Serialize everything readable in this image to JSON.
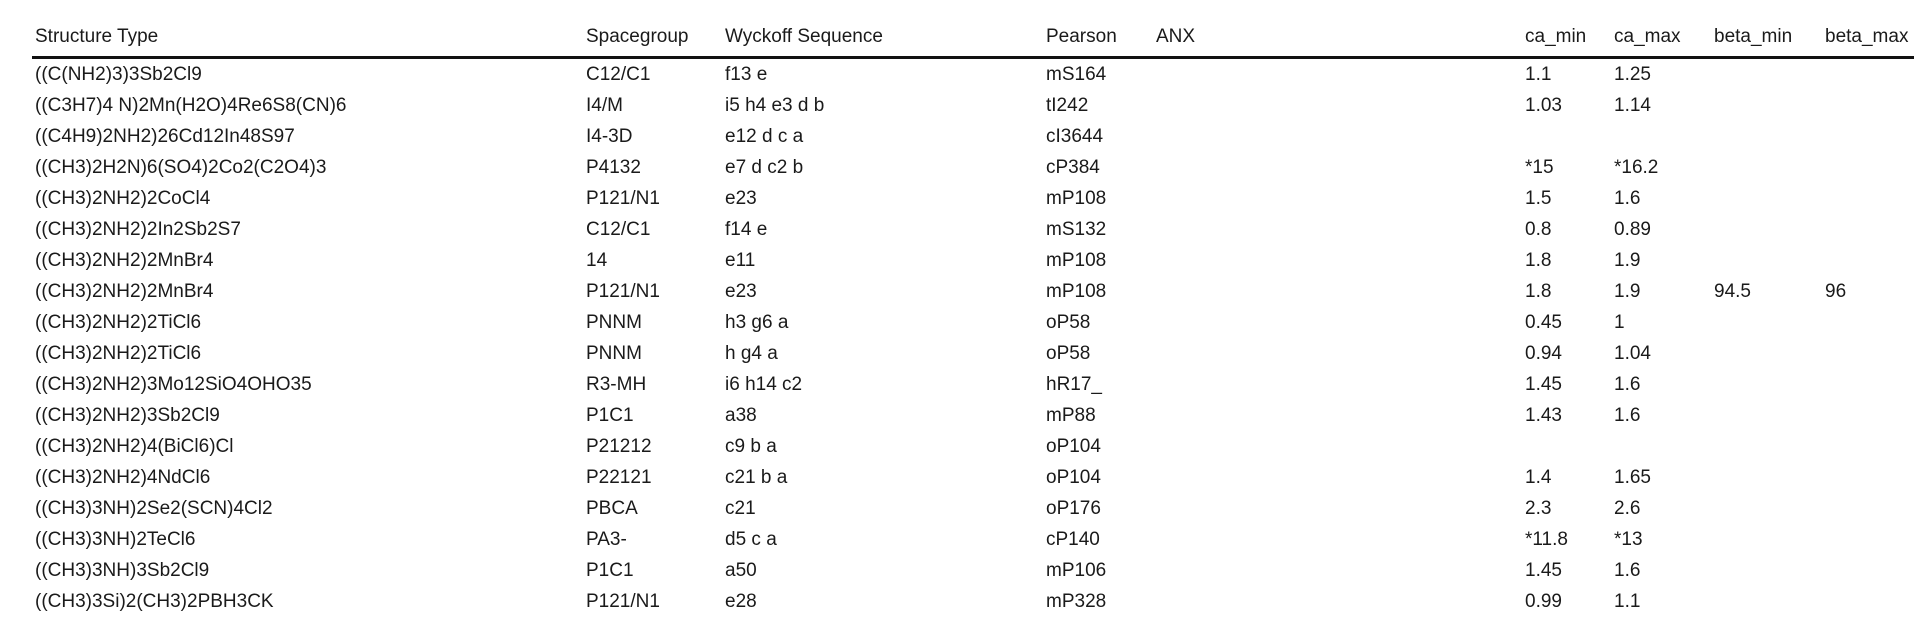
{
  "table": {
    "headers": {
      "structure_type": "Structure Type",
      "spacegroup": "Spacegroup",
      "wyckoff_sequence": "Wyckoff Sequence",
      "pearson": "Pearson",
      "anx": "ANX",
      "ca_min": "ca_min",
      "ca_max": "ca_max",
      "beta_min": "beta_min",
      "beta_max": "beta_max"
    },
    "rows": [
      {
        "structure_type": "((C(NH2)3)3Sb2Cl9",
        "spacegroup": "C12/C1",
        "wyckoff_sequence": "f13 e",
        "pearson": "mS164",
        "anx": "",
        "ca_min": "1.1",
        "ca_max": "1.25",
        "beta_min": "",
        "beta_max": ""
      },
      {
        "structure_type": "((C3H7)4 N)2Mn(H2O)4Re6S8(CN)6",
        "spacegroup": "I4/M",
        "wyckoff_sequence": "i5 h4 e3 d b",
        "pearson": "tI242",
        "anx": "",
        "ca_min": "1.03",
        "ca_max": "1.14",
        "beta_min": "",
        "beta_max": ""
      },
      {
        "structure_type": "((C4H9)2NH2)26Cd12In48S97",
        "spacegroup": "I4-3D",
        "wyckoff_sequence": "e12 d c a",
        "pearson": "cI3644",
        "anx": "",
        "ca_min": "",
        "ca_max": "",
        "beta_min": "",
        "beta_max": ""
      },
      {
        "structure_type": "((CH3)2H2N)6(SO4)2Co2(C2O4)3",
        "spacegroup": "P4132",
        "wyckoff_sequence": "e7 d c2 b",
        "pearson": "cP384",
        "anx": "",
        "ca_min": "*15",
        "ca_max": "*16.2",
        "beta_min": "",
        "beta_max": ""
      },
      {
        "structure_type": "((CH3)2NH2)2CoCl4",
        "spacegroup": "P121/N1",
        "wyckoff_sequence": "e23",
        "pearson": "mP108",
        "anx": "",
        "ca_min": "1.5",
        "ca_max": "1.6",
        "beta_min": "",
        "beta_max": ""
      },
      {
        "structure_type": "((CH3)2NH2)2In2Sb2S7",
        "spacegroup": "C12/C1",
        "wyckoff_sequence": "f14 e",
        "pearson": "mS132",
        "anx": "",
        "ca_min": "0.8",
        "ca_max": "0.89",
        "beta_min": "",
        "beta_max": ""
      },
      {
        "structure_type": "((CH3)2NH2)2MnBr4",
        "spacegroup": "14",
        "wyckoff_sequence": "e11",
        "pearson": "mP108",
        "anx": "",
        "ca_min": "1.8",
        "ca_max": "1.9",
        "beta_min": "",
        "beta_max": ""
      },
      {
        "structure_type": "((CH3)2NH2)2MnBr4",
        "spacegroup": "P121/N1",
        "wyckoff_sequence": "e23",
        "pearson": "mP108",
        "anx": "",
        "ca_min": "1.8",
        "ca_max": "1.9",
        "beta_min": "94.5",
        "beta_max": "96"
      },
      {
        "structure_type": "((CH3)2NH2)2TiCl6",
        "spacegroup": "PNNM",
        "wyckoff_sequence": "h3 g6 a",
        "pearson": "oP58",
        "anx": "",
        "ca_min": "0.45",
        "ca_max": "1",
        "beta_min": "",
        "beta_max": ""
      },
      {
        "structure_type": "((CH3)2NH2)2TiCl6",
        "spacegroup": "PNNM",
        "wyckoff_sequence": "h g4 a",
        "pearson": "oP58",
        "anx": "",
        "ca_min": "0.94",
        "ca_max": "1.04",
        "beta_min": "",
        "beta_max": ""
      },
      {
        "structure_type": "((CH3)2NH2)3Mo12SiO4OHO35",
        "spacegroup": "R3-MH",
        "wyckoff_sequence": "i6 h14 c2",
        "pearson": "hR17_",
        "anx": "",
        "ca_min": "1.45",
        "ca_max": "1.6",
        "beta_min": "",
        "beta_max": ""
      },
      {
        "structure_type": "((CH3)2NH2)3Sb2Cl9",
        "spacegroup": "P1C1",
        "wyckoff_sequence": "a38",
        "pearson": "mP88",
        "anx": "",
        "ca_min": "1.43",
        "ca_max": "1.6",
        "beta_min": "",
        "beta_max": ""
      },
      {
        "structure_type": "((CH3)2NH2)4(BiCl6)Cl",
        "spacegroup": "P21212",
        "wyckoff_sequence": "c9 b a",
        "pearson": "oP104",
        "anx": "",
        "ca_min": "",
        "ca_max": "",
        "beta_min": "",
        "beta_max": ""
      },
      {
        "structure_type": "((CH3)2NH2)4NdCl6",
        "spacegroup": "P22121",
        "wyckoff_sequence": "c21 b a",
        "pearson": "oP104",
        "anx": "",
        "ca_min": "1.4",
        "ca_max": "1.65",
        "beta_min": "",
        "beta_max": ""
      },
      {
        "structure_type": "((CH3)3NH)2Se2(SCN)4Cl2",
        "spacegroup": "PBCA",
        "wyckoff_sequence": "c21",
        "pearson": "oP176",
        "anx": "",
        "ca_min": "2.3",
        "ca_max": "2.6",
        "beta_min": "",
        "beta_max": ""
      },
      {
        "structure_type": "((CH3)3NH)2TeCl6",
        "spacegroup": "PA3-",
        "wyckoff_sequence": "d5 c a",
        "pearson": "cP140",
        "anx": "",
        "ca_min": "*11.8",
        "ca_max": "*13",
        "beta_min": "",
        "beta_max": ""
      },
      {
        "structure_type": "((CH3)3NH)3Sb2Cl9",
        "spacegroup": "P1C1",
        "wyckoff_sequence": "a50",
        "pearson": "mP106",
        "anx": "",
        "ca_min": "1.45",
        "ca_max": "1.6",
        "beta_min": "",
        "beta_max": ""
      },
      {
        "structure_type": "((CH3)3Si)2(CH3)2PBH3CK",
        "spacegroup": "P121/N1",
        "wyckoff_sequence": "e28",
        "pearson": "mP328",
        "anx": "",
        "ca_min": "0.99",
        "ca_max": "1.1",
        "beta_min": "",
        "beta_max": ""
      }
    ]
  }
}
